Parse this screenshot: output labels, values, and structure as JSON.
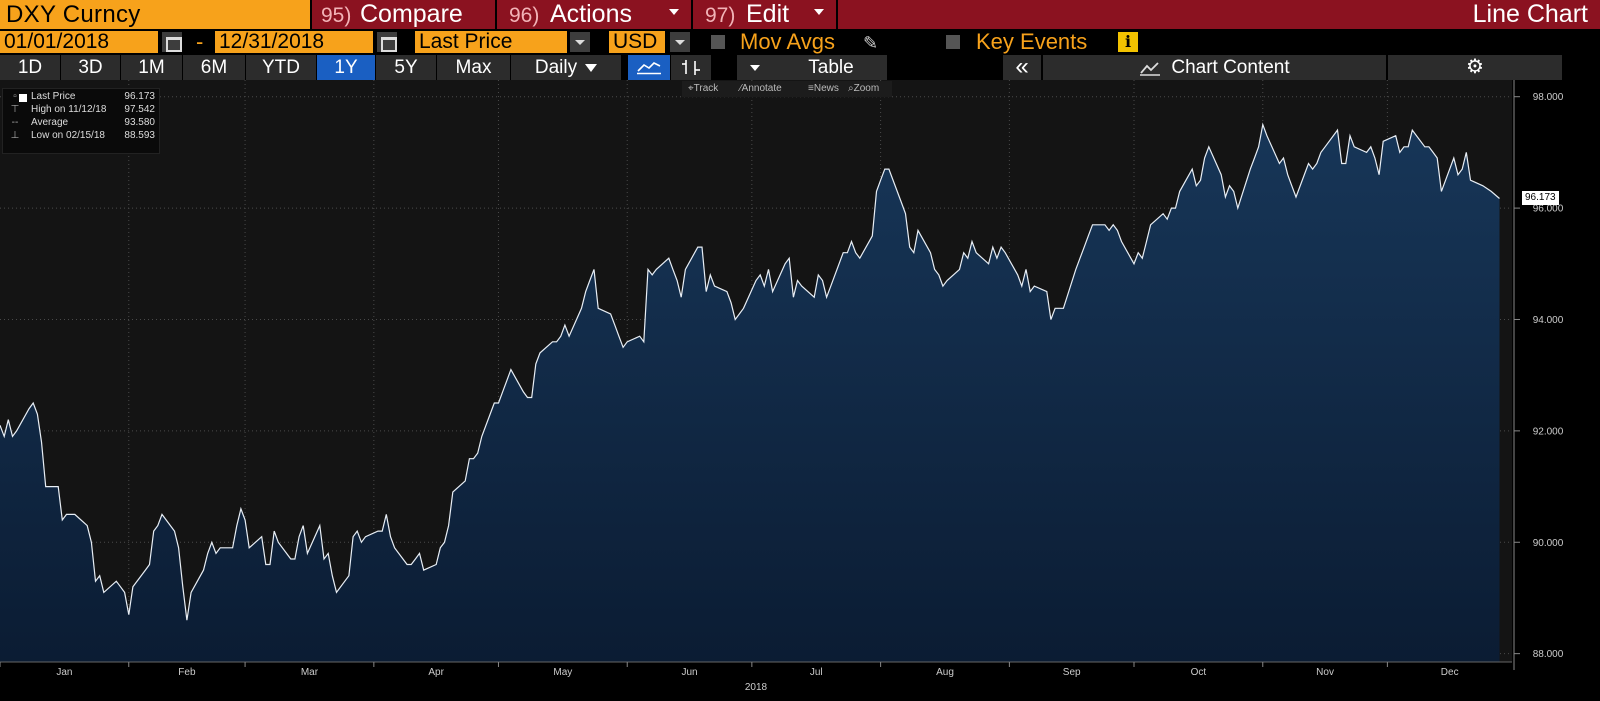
{
  "header": {
    "ticker": "DXY Curncy",
    "compare_num": "95)",
    "compare_label": "Compare",
    "actions_num": "96)",
    "actions_label": "Actions",
    "edit_num": "97)",
    "edit_label": "Edit",
    "chart_type": "Line Chart"
  },
  "settings": {
    "start_date": "01/01/2018",
    "date_sep": "-",
    "end_date": "12/31/2018",
    "field": "Last Price",
    "currency": "USD",
    "mov_avgs_label": "Mov Avgs",
    "key_events_label": "Key Events",
    "info_glyph": "i"
  },
  "toolbar": {
    "ranges": [
      "1D",
      "3D",
      "1M",
      "6M",
      "YTD",
      "1Y",
      "5Y",
      "Max"
    ],
    "active_range": "1Y",
    "frequency": "Daily",
    "table_label": "Table",
    "collapse_glyph": "«",
    "chart_content_label": "Chart Content",
    "settings_glyph": "⚙"
  },
  "chart_tools": {
    "track": "Track",
    "annotate": "Annotate",
    "news": "News",
    "zoom": "Zoom"
  },
  "legend": {
    "last_price_label": "Last Price",
    "last_price_value": "96.173",
    "high_label": "High on 11/12/18",
    "high_value": "97.542",
    "average_label": "Average",
    "average_value": "93.580",
    "low_label": "Low on 02/15/18",
    "low_value": "88.593"
  },
  "colors": {
    "title_bar": "#8b1220",
    "accent_orange": "#f7a21b",
    "active_blue": "#1a5fc2",
    "area_fill_top": "#173658",
    "area_fill_bottom": "#0b1c33",
    "line": "#e8eef5",
    "plot_background": "#141414"
  },
  "chart_data": {
    "type": "area",
    "xlabel": "2018",
    "ylabel": "",
    "x_tick_labels": [
      "Jan",
      "Feb",
      "Mar",
      "Apr",
      "May",
      "Jun",
      "Jul",
      "Aug",
      "Sep",
      "Oct",
      "Nov",
      "Dec"
    ],
    "y_ticks": [
      88.0,
      90.0,
      92.0,
      94.0,
      96.0,
      98.0
    ],
    "y_tick_labels": [
      "88.000",
      "90.000",
      "92.000",
      "94.000",
      "96.000",
      "98.000"
    ],
    "ylim": [
      87.85,
      98.3
    ],
    "xlim": [
      "2018-01-01",
      "2018-12-31"
    ],
    "last_value_label": "96.173",
    "grid": true,
    "series": [
      {
        "name": "Last Price",
        "points": [
          [
            "2018-01-01",
            92.1
          ],
          [
            "2018-01-02",
            91.9
          ],
          [
            "2018-01-03",
            92.2
          ],
          [
            "2018-01-04",
            91.9
          ],
          [
            "2018-01-05",
            92.0
          ],
          [
            "2018-01-08",
            92.4
          ],
          [
            "2018-01-09",
            92.5
          ],
          [
            "2018-01-10",
            92.3
          ],
          [
            "2018-01-11",
            91.8
          ],
          [
            "2018-01-12",
            91.0
          ],
          [
            "2018-01-15",
            91.0
          ],
          [
            "2018-01-16",
            90.4
          ],
          [
            "2018-01-17",
            90.5
          ],
          [
            "2018-01-18",
            90.5
          ],
          [
            "2018-01-19",
            90.5
          ],
          [
            "2018-01-22",
            90.3
          ],
          [
            "2018-01-23",
            90.0
          ],
          [
            "2018-01-24",
            89.3
          ],
          [
            "2018-01-25",
            89.4
          ],
          [
            "2018-01-26",
            89.1
          ],
          [
            "2018-01-29",
            89.3
          ],
          [
            "2018-01-30",
            89.2
          ],
          [
            "2018-01-31",
            89.1
          ],
          [
            "2018-02-01",
            88.7
          ],
          [
            "2018-02-02",
            89.2
          ],
          [
            "2018-02-05",
            89.5
          ],
          [
            "2018-02-06",
            89.6
          ],
          [
            "2018-02-07",
            90.2
          ],
          [
            "2018-02-08",
            90.3
          ],
          [
            "2018-02-09",
            90.5
          ],
          [
            "2018-02-12",
            90.2
          ],
          [
            "2018-02-13",
            89.9
          ],
          [
            "2018-02-14",
            89.2
          ],
          [
            "2018-02-15",
            88.6
          ],
          [
            "2018-02-16",
            89.1
          ],
          [
            "2018-02-19",
            89.5
          ],
          [
            "2018-02-20",
            89.8
          ],
          [
            "2018-02-21",
            90.0
          ],
          [
            "2018-02-22",
            89.8
          ],
          [
            "2018-02-23",
            89.9
          ],
          [
            "2018-02-26",
            89.9
          ],
          [
            "2018-02-27",
            90.3
          ],
          [
            "2018-02-28",
            90.6
          ],
          [
            "2018-03-01",
            90.4
          ],
          [
            "2018-03-02",
            89.9
          ],
          [
            "2018-03-05",
            90.1
          ],
          [
            "2018-03-06",
            89.6
          ],
          [
            "2018-03-07",
            89.6
          ],
          [
            "2018-03-08",
            90.2
          ],
          [
            "2018-03-09",
            90.0
          ],
          [
            "2018-03-12",
            89.7
          ],
          [
            "2018-03-13",
            89.7
          ],
          [
            "2018-03-14",
            90.1
          ],
          [
            "2018-03-15",
            90.3
          ],
          [
            "2018-03-16",
            89.8
          ],
          [
            "2018-03-19",
            90.3
          ],
          [
            "2018-03-20",
            89.7
          ],
          [
            "2018-03-21",
            89.8
          ],
          [
            "2018-03-22",
            89.4
          ],
          [
            "2018-03-23",
            89.1
          ],
          [
            "2018-03-26",
            89.4
          ],
          [
            "2018-03-27",
            90.1
          ],
          [
            "2018-03-28",
            90.2
          ],
          [
            "2018-03-29",
            90.0
          ],
          [
            "2018-03-30",
            90.1
          ],
          [
            "2018-04-02",
            90.2
          ],
          [
            "2018-04-03",
            90.2
          ],
          [
            "2018-04-04",
            90.5
          ],
          [
            "2018-04-05",
            90.1
          ],
          [
            "2018-04-06",
            89.9
          ],
          [
            "2018-04-09",
            89.6
          ],
          [
            "2018-04-10",
            89.6
          ],
          [
            "2018-04-11",
            89.7
          ],
          [
            "2018-04-12",
            89.8
          ],
          [
            "2018-04-13",
            89.5
          ],
          [
            "2018-04-16",
            89.6
          ],
          [
            "2018-04-17",
            89.9
          ],
          [
            "2018-04-18",
            90.0
          ],
          [
            "2018-04-19",
            90.3
          ],
          [
            "2018-04-20",
            90.9
          ],
          [
            "2018-04-23",
            91.1
          ],
          [
            "2018-04-24",
            91.5
          ],
          [
            "2018-04-25",
            91.5
          ],
          [
            "2018-04-26",
            91.6
          ],
          [
            "2018-04-27",
            91.9
          ],
          [
            "2018-04-30",
            92.5
          ],
          [
            "2018-05-01",
            92.5
          ],
          [
            "2018-05-02",
            92.7
          ],
          [
            "2018-05-03",
            92.9
          ],
          [
            "2018-05-04",
            93.1
          ],
          [
            "2018-05-07",
            92.7
          ],
          [
            "2018-05-08",
            92.6
          ],
          [
            "2018-05-09",
            92.6
          ],
          [
            "2018-05-10",
            93.2
          ],
          [
            "2018-05-11",
            93.4
          ],
          [
            "2018-05-14",
            93.6
          ],
          [
            "2018-05-15",
            93.6
          ],
          [
            "2018-05-16",
            93.7
          ],
          [
            "2018-05-17",
            93.9
          ],
          [
            "2018-05-18",
            93.7
          ],
          [
            "2018-05-21",
            94.2
          ],
          [
            "2018-05-22",
            94.5
          ],
          [
            "2018-05-23",
            94.7
          ],
          [
            "2018-05-24",
            94.9
          ],
          [
            "2018-05-25",
            94.2
          ],
          [
            "2018-05-28",
            94.1
          ],
          [
            "2018-05-29",
            93.9
          ],
          [
            "2018-05-30",
            93.7
          ],
          [
            "2018-05-31",
            93.5
          ],
          [
            "2018-06-01",
            93.6
          ],
          [
            "2018-06-04",
            93.7
          ],
          [
            "2018-06-05",
            93.6
          ],
          [
            "2018-06-06",
            94.9
          ],
          [
            "2018-06-07",
            94.8
          ],
          [
            "2018-06-08",
            94.9
          ],
          [
            "2018-06-11",
            95.1
          ],
          [
            "2018-06-12",
            94.9
          ],
          [
            "2018-06-13",
            94.7
          ],
          [
            "2018-06-14",
            94.4
          ],
          [
            "2018-06-15",
            94.9
          ],
          [
            "2018-06-18",
            95.3
          ],
          [
            "2018-06-19",
            95.3
          ],
          [
            "2018-06-20",
            94.5
          ],
          [
            "2018-06-21",
            94.8
          ],
          [
            "2018-06-22",
            94.6
          ],
          [
            "2018-06-25",
            94.5
          ],
          [
            "2018-06-26",
            94.3
          ],
          [
            "2018-06-27",
            94.0
          ],
          [
            "2018-06-28",
            94.1
          ],
          [
            "2018-06-29",
            94.2
          ],
          [
            "2018-07-02",
            94.7
          ],
          [
            "2018-07-03",
            94.8
          ],
          [
            "2018-07-04",
            94.6
          ],
          [
            "2018-07-05",
            94.9
          ],
          [
            "2018-07-06",
            94.5
          ],
          [
            "2018-07-09",
            95.0
          ],
          [
            "2018-07-10",
            95.1
          ],
          [
            "2018-07-11",
            94.4
          ],
          [
            "2018-07-12",
            94.7
          ],
          [
            "2018-07-13",
            94.6
          ],
          [
            "2018-07-16",
            94.4
          ],
          [
            "2018-07-17",
            94.8
          ],
          [
            "2018-07-18",
            94.7
          ],
          [
            "2018-07-19",
            94.4
          ],
          [
            "2018-07-20",
            94.6
          ],
          [
            "2018-07-23",
            95.2
          ],
          [
            "2018-07-24",
            95.2
          ],
          [
            "2018-07-25",
            95.4
          ],
          [
            "2018-07-26",
            95.2
          ],
          [
            "2018-07-27",
            95.1
          ],
          [
            "2018-07-30",
            95.5
          ],
          [
            "2018-07-31",
            96.3
          ],
          [
            "2018-08-01",
            96.5
          ],
          [
            "2018-08-02",
            96.7
          ],
          [
            "2018-08-03",
            96.7
          ],
          [
            "2018-08-06",
            96.1
          ],
          [
            "2018-08-07",
            95.9
          ],
          [
            "2018-08-08",
            95.3
          ],
          [
            "2018-08-09",
            95.2
          ],
          [
            "2018-08-10",
            95.6
          ],
          [
            "2018-08-13",
            95.2
          ],
          [
            "2018-08-14",
            94.9
          ],
          [
            "2018-08-15",
            94.8
          ],
          [
            "2018-08-16",
            94.6
          ],
          [
            "2018-08-17",
            94.7
          ],
          [
            "2018-08-20",
            94.9
          ],
          [
            "2018-08-21",
            95.2
          ],
          [
            "2018-08-22",
            95.1
          ],
          [
            "2018-08-23",
            95.4
          ],
          [
            "2018-08-24",
            95.2
          ],
          [
            "2018-08-27",
            95.0
          ],
          [
            "2018-08-28",
            95.3
          ],
          [
            "2018-08-29",
            95.1
          ],
          [
            "2018-08-30",
            95.3
          ],
          [
            "2018-08-31",
            95.2
          ],
          [
            "2018-09-03",
            94.8
          ],
          [
            "2018-09-04",
            94.6
          ],
          [
            "2018-09-05",
            94.9
          ],
          [
            "2018-09-06",
            94.5
          ],
          [
            "2018-09-07",
            94.6
          ],
          [
            "2018-09-10",
            94.5
          ],
          [
            "2018-09-11",
            94.0
          ],
          [
            "2018-09-12",
            94.2
          ],
          [
            "2018-09-13",
            94.2
          ],
          [
            "2018-09-14",
            94.2
          ],
          [
            "2018-09-17",
            94.9
          ],
          [
            "2018-09-18",
            95.1
          ],
          [
            "2018-09-19",
            95.3
          ],
          [
            "2018-09-20",
            95.5
          ],
          [
            "2018-09-21",
            95.7
          ],
          [
            "2018-09-24",
            95.7
          ],
          [
            "2018-09-25",
            95.6
          ],
          [
            "2018-09-26",
            95.7
          ],
          [
            "2018-09-27",
            95.6
          ],
          [
            "2018-09-28",
            95.4
          ],
          [
            "2018-10-01",
            95.0
          ],
          [
            "2018-10-02",
            95.2
          ],
          [
            "2018-10-03",
            95.1
          ],
          [
            "2018-10-04",
            95.4
          ],
          [
            "2018-10-05",
            95.7
          ],
          [
            "2018-10-08",
            95.9
          ],
          [
            "2018-10-09",
            95.8
          ],
          [
            "2018-10-10",
            96.0
          ],
          [
            "2018-10-11",
            96.0
          ],
          [
            "2018-10-12",
            96.3
          ],
          [
            "2018-10-15",
            96.7
          ],
          [
            "2018-10-16",
            96.4
          ],
          [
            "2018-10-17",
            96.5
          ],
          [
            "2018-10-18",
            96.9
          ],
          [
            "2018-10-19",
            97.1
          ],
          [
            "2018-10-22",
            96.6
          ],
          [
            "2018-10-23",
            96.2
          ],
          [
            "2018-10-24",
            96.4
          ],
          [
            "2018-10-25",
            96.3
          ],
          [
            "2018-10-26",
            96.0
          ],
          [
            "2018-10-29",
            96.7
          ],
          [
            "2018-10-30",
            96.9
          ],
          [
            "2018-10-31",
            97.1
          ],
          [
            "2018-11-01",
            97.5
          ],
          [
            "2018-11-02",
            97.3
          ],
          [
            "2018-11-05",
            96.8
          ],
          [
            "2018-11-06",
            96.9
          ],
          [
            "2018-11-07",
            96.6
          ],
          [
            "2018-11-08",
            96.4
          ],
          [
            "2018-11-09",
            96.2
          ],
          [
            "2018-11-12",
            96.8
          ],
          [
            "2018-11-13",
            96.7
          ],
          [
            "2018-11-14",
            96.8
          ],
          [
            "2018-11-15",
            97.0
          ],
          [
            "2018-11-16",
            97.1
          ],
          [
            "2018-11-19",
            97.4
          ],
          [
            "2018-11-20",
            96.8
          ],
          [
            "2018-11-21",
            96.8
          ],
          [
            "2018-11-22",
            97.3
          ],
          [
            "2018-11-23",
            97.1
          ],
          [
            "2018-11-26",
            97.0
          ],
          [
            "2018-11-27",
            97.1
          ],
          [
            "2018-11-28",
            96.9
          ],
          [
            "2018-11-29",
            96.6
          ],
          [
            "2018-11-30",
            97.2
          ],
          [
            "2018-12-03",
            97.3
          ],
          [
            "2018-12-04",
            97.0
          ],
          [
            "2018-12-05",
            97.1
          ],
          [
            "2018-12-06",
            97.1
          ],
          [
            "2018-12-07",
            97.4
          ],
          [
            "2018-12-10",
            97.1
          ],
          [
            "2018-12-11",
            97.1
          ],
          [
            "2018-12-12",
            97.0
          ],
          [
            "2018-12-13",
            96.9
          ],
          [
            "2018-12-14",
            96.3
          ],
          [
            "2018-12-17",
            96.9
          ],
          [
            "2018-12-18",
            96.6
          ],
          [
            "2018-12-19",
            96.7
          ],
          [
            "2018-12-20",
            97.0
          ],
          [
            "2018-12-21",
            96.5
          ],
          [
            "2018-12-24",
            96.4
          ],
          [
            "2018-12-26",
            96.3
          ],
          [
            "2018-12-28",
            96.173
          ]
        ]
      }
    ]
  }
}
